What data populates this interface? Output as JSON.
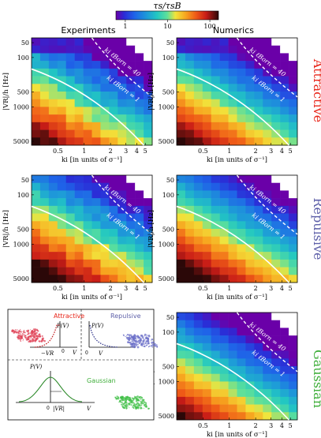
{
  "colorbar": {
    "label": "τs/τsB",
    "ticks": [
      "1",
      "10",
      "100"
    ],
    "ticks_values": [
      1,
      10,
      100
    ],
    "range": [
      0.6,
      160
    ],
    "scale": "log",
    "colormap": [
      "#1a0b8f",
      "#2b2bd6",
      "#1f63e8",
      "#1e9ad8",
      "#22c7c2",
      "#5ee09a",
      "#b9e85a",
      "#f2e43b",
      "#f7a51f",
      "#ef5a17",
      "#c81c17",
      "#7e0d0d",
      "#2b0808"
    ]
  },
  "column_titles": [
    "Experiments",
    "Numerics"
  ],
  "row_titles": [
    {
      "text": "Attractive",
      "color": "#e8261a"
    },
    {
      "text": "Repulsive",
      "color": "#5d5fa8"
    },
    {
      "text": "Gaussian",
      "color": "#3fae3a"
    }
  ],
  "axes": {
    "xlabel": "ki [in units of σ⁻¹]",
    "ylabel": "|VR|/h [Hz]",
    "xticks": [
      "0.5",
      "1",
      "2",
      "3",
      "4",
      "5"
    ],
    "yticks": [
      "50",
      "100",
      "500",
      "1000",
      "5000"
    ],
    "xlim": [
      0.25,
      6
    ],
    "ylim": [
      40,
      6000
    ]
  },
  "curve_labels": {
    "solid": "ki ℓBorn = 1",
    "dashed": "ki ℓBorn = 40"
  },
  "inset": {
    "attractive_label": "Attractive",
    "repulsive_label": "Repulsive",
    "gaussian_label": "Gaussian",
    "p_of_v": "P(V)",
    "v_label": "V",
    "minus_vr": "−VR",
    "abs_vr": "|VR|",
    "zero": "0"
  },
  "chart_data": [
    {
      "type": "heatmap",
      "panel": "Attractive / Experiments",
      "xlim": [
        0.25,
        6
      ],
      "ylim": [
        40,
        6000
      ],
      "xscale": "log",
      "yscale": "log",
      "color_scale": "log"
    },
    {
      "type": "heatmap",
      "panel": "Attractive / Numerics",
      "xlim": [
        0.25,
        6
      ],
      "ylim": [
        40,
        6000
      ],
      "xscale": "log",
      "yscale": "log",
      "color_scale": "log"
    },
    {
      "type": "heatmap",
      "panel": "Repulsive / Experiments",
      "xlim": [
        0.25,
        6
      ],
      "ylim": [
        40,
        6000
      ],
      "xscale": "log",
      "yscale": "log",
      "color_scale": "log"
    },
    {
      "type": "heatmap",
      "panel": "Repulsive / Numerics",
      "xlim": [
        0.25,
        6
      ],
      "ylim": [
        40,
        6000
      ],
      "xscale": "log",
      "yscale": "log",
      "color_scale": "log"
    },
    {
      "type": "heatmap",
      "panel": "Gaussian / Numerics",
      "xlim": [
        0.25,
        6
      ],
      "ylim": [
        40,
        6000
      ],
      "xscale": "log",
      "yscale": "log",
      "color_scale": "log"
    }
  ]
}
